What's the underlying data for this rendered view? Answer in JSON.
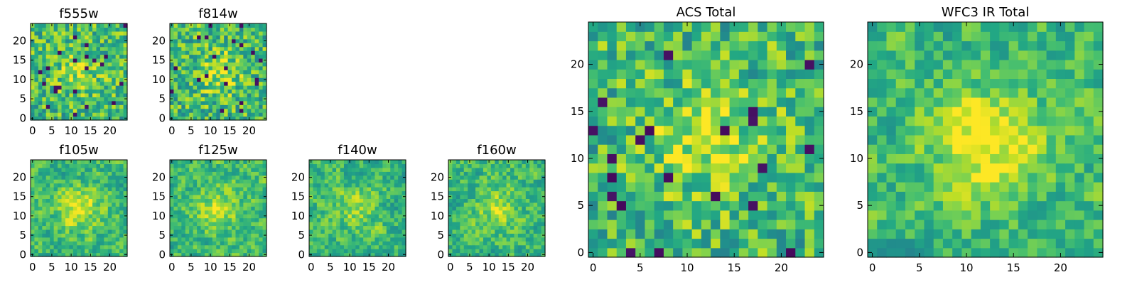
{
  "chart_data": [
    {
      "type": "heatmap",
      "title": "f555w",
      "grid_size": 25,
      "colormap": "viridis",
      "xlim": [
        0,
        24
      ],
      "ylim": [
        0,
        24
      ],
      "xticks": [
        "0",
        "5",
        "10",
        "15",
        "20"
      ],
      "yticks": [
        "0",
        "5",
        "10",
        "15",
        "20"
      ],
      "seed": 11,
      "pattern": "noise",
      "center_strength": 0.18
    },
    {
      "type": "heatmap",
      "title": "f814w",
      "grid_size": 25,
      "colormap": "viridis",
      "xlim": [
        0,
        24
      ],
      "ylim": [
        0,
        24
      ],
      "xticks": [
        "0",
        "5",
        "10",
        "15",
        "20"
      ],
      "yticks": [
        "0",
        "5",
        "10",
        "15",
        "20"
      ],
      "seed": 23,
      "pattern": "noise",
      "center_strength": 0.22
    },
    {
      "type": "heatmap",
      "title": "f105w",
      "grid_size": 25,
      "colormap": "viridis",
      "xlim": [
        0,
        24
      ],
      "ylim": [
        0,
        24
      ],
      "xticks": [
        "0",
        "5",
        "10",
        "15",
        "20"
      ],
      "yticks": [
        "0",
        "5",
        "10",
        "15",
        "20"
      ],
      "seed": 37,
      "pattern": "smooth",
      "center_strength": 0.28
    },
    {
      "type": "heatmap",
      "title": "f125w",
      "grid_size": 25,
      "colormap": "viridis",
      "xlim": [
        0,
        24
      ],
      "ylim": [
        0,
        24
      ],
      "xticks": [
        "0",
        "5",
        "10",
        "15",
        "20"
      ],
      "yticks": [
        "0",
        "5",
        "10",
        "15",
        "20"
      ],
      "seed": 41,
      "pattern": "smooth",
      "center_strength": 0.24
    },
    {
      "type": "heatmap",
      "title": "f140w",
      "grid_size": 25,
      "colormap": "viridis",
      "xlim": [
        0,
        24
      ],
      "ylim": [
        0,
        24
      ],
      "xticks": [
        "0",
        "5",
        "10",
        "15",
        "20"
      ],
      "yticks": [
        "0",
        "5",
        "10",
        "15",
        "20"
      ],
      "seed": 53,
      "pattern": "smooth",
      "center_strength": 0.16
    },
    {
      "type": "heatmap",
      "title": "f160w",
      "grid_size": 25,
      "colormap": "viridis",
      "xlim": [
        0,
        24
      ],
      "ylim": [
        0,
        24
      ],
      "xticks": [
        "0",
        "5",
        "10",
        "15",
        "20"
      ],
      "yticks": [
        "0",
        "5",
        "10",
        "15",
        "20"
      ],
      "seed": 67,
      "pattern": "smooth",
      "center_strength": 0.2
    },
    {
      "type": "heatmap",
      "title": "ACS Total",
      "grid_size": 25,
      "colormap": "viridis",
      "xlim": [
        0,
        24
      ],
      "ylim": [
        0,
        24
      ],
      "xticks": [
        "0",
        "5",
        "10",
        "15",
        "20"
      ],
      "yticks": [
        "0",
        "5",
        "10",
        "15",
        "20"
      ],
      "seed": 79,
      "pattern": "noise",
      "center_strength": 0.26
    },
    {
      "type": "heatmap",
      "title": "WFC3 IR Total",
      "grid_size": 25,
      "colormap": "viridis",
      "xlim": [
        0,
        24
      ],
      "ylim": [
        0,
        24
      ],
      "xticks": [
        "0",
        "5",
        "10",
        "15",
        "20"
      ],
      "yticks": [
        "0",
        "5",
        "10",
        "15",
        "20"
      ],
      "seed": 97,
      "pattern": "smooth",
      "center_strength": 0.34
    }
  ],
  "colors": {
    "frame": "#000000",
    "background": "#ffffff"
  }
}
